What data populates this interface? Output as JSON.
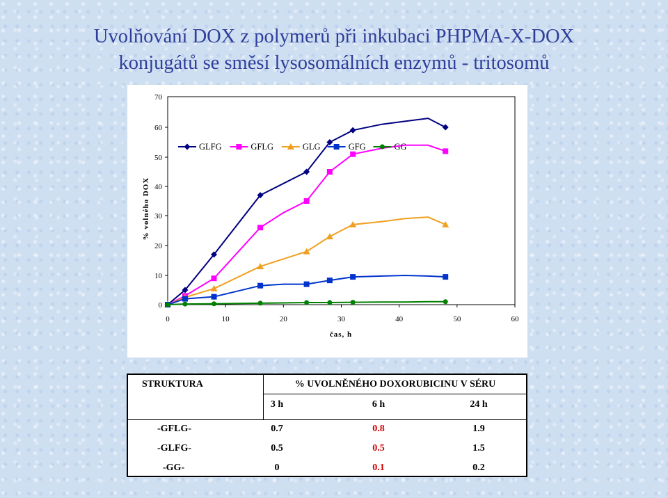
{
  "title_line1": "Uvolňování DOX z polymerů při inkubaci PHPMA-X-DOX",
  "title_line2": "konjugátů se směsí lysosomálních enzymů - tritosomů",
  "chart_data": {
    "type": "line",
    "xlabel": "čas, h",
    "ylabel": "% volného DOX",
    "xlim": [
      0,
      60
    ],
    "ylim": [
      0,
      70
    ],
    "x_ticks": [
      0,
      10,
      20,
      30,
      40,
      50,
      60
    ],
    "y_ticks": [
      0,
      10,
      20,
      30,
      40,
      50,
      60,
      70
    ],
    "legend_position": "top-left inside plot",
    "series": [
      {
        "name": "GLFG",
        "color": "#000080",
        "marker": "diamond",
        "x": [
          0,
          3,
          8,
          16,
          20,
          24,
          28,
          32,
          37,
          41,
          45,
          48
        ],
        "y": [
          0,
          5,
          17,
          37,
          41,
          45,
          55,
          59,
          61,
          62,
          63,
          60
        ]
      },
      {
        "name": "GFLG",
        "color": "#ff00ff",
        "marker": "square",
        "x": [
          0,
          3,
          8,
          16,
          20,
          24,
          28,
          32,
          37,
          41,
          45,
          48
        ],
        "y": [
          0,
          3,
          9,
          26,
          31,
          35,
          45,
          51,
          53,
          54,
          54,
          52
        ]
      },
      {
        "name": "GLG",
        "color": "#f0a020",
        "marker": "triangle",
        "x": [
          0,
          3,
          8,
          16,
          20,
          24,
          28,
          32,
          37,
          41,
          45,
          48
        ],
        "y": [
          0,
          2.5,
          5.5,
          13,
          15.5,
          18,
          23,
          27,
          28,
          29,
          29.5,
          27
        ]
      },
      {
        "name": "GFG",
        "color": "#0033cc",
        "marker": "square",
        "x": [
          0,
          3,
          8,
          16,
          20,
          24,
          28,
          32,
          37,
          41,
          45,
          48
        ],
        "y": [
          0,
          2,
          2.7,
          6.5,
          7,
          7,
          8.3,
          9.5,
          9.8,
          10,
          9.8,
          9.5
        ]
      },
      {
        "name": "GG",
        "color": "#008000",
        "marker": "circle",
        "x": [
          0,
          3,
          8,
          16,
          20,
          24,
          28,
          32,
          37,
          41,
          45,
          48
        ],
        "y": [
          0,
          0.2,
          0.3,
          0.5,
          0.6,
          0.7,
          0.7,
          0.8,
          0.9,
          0.9,
          1.0,
          1.0
        ]
      }
    ]
  },
  "table": {
    "header_structure": "STRUKTURA",
    "header_release": "% UVOLNĚNÉHO DOXORUBICINU V SÉRU",
    "time_headers": [
      "3 h",
      "6 h",
      "24 h"
    ],
    "rows": [
      {
        "structure": "-GFLG-",
        "values": [
          "0.7",
          "0.8",
          "1.9"
        ]
      },
      {
        "structure": "-GLFG-",
        "values": [
          "0.5",
          "0.5",
          "1.5"
        ]
      },
      {
        "structure": "-GG-",
        "values": [
          "0",
          "0.1",
          "0.2"
        ]
      }
    ],
    "highlight_color": "#d40000"
  }
}
